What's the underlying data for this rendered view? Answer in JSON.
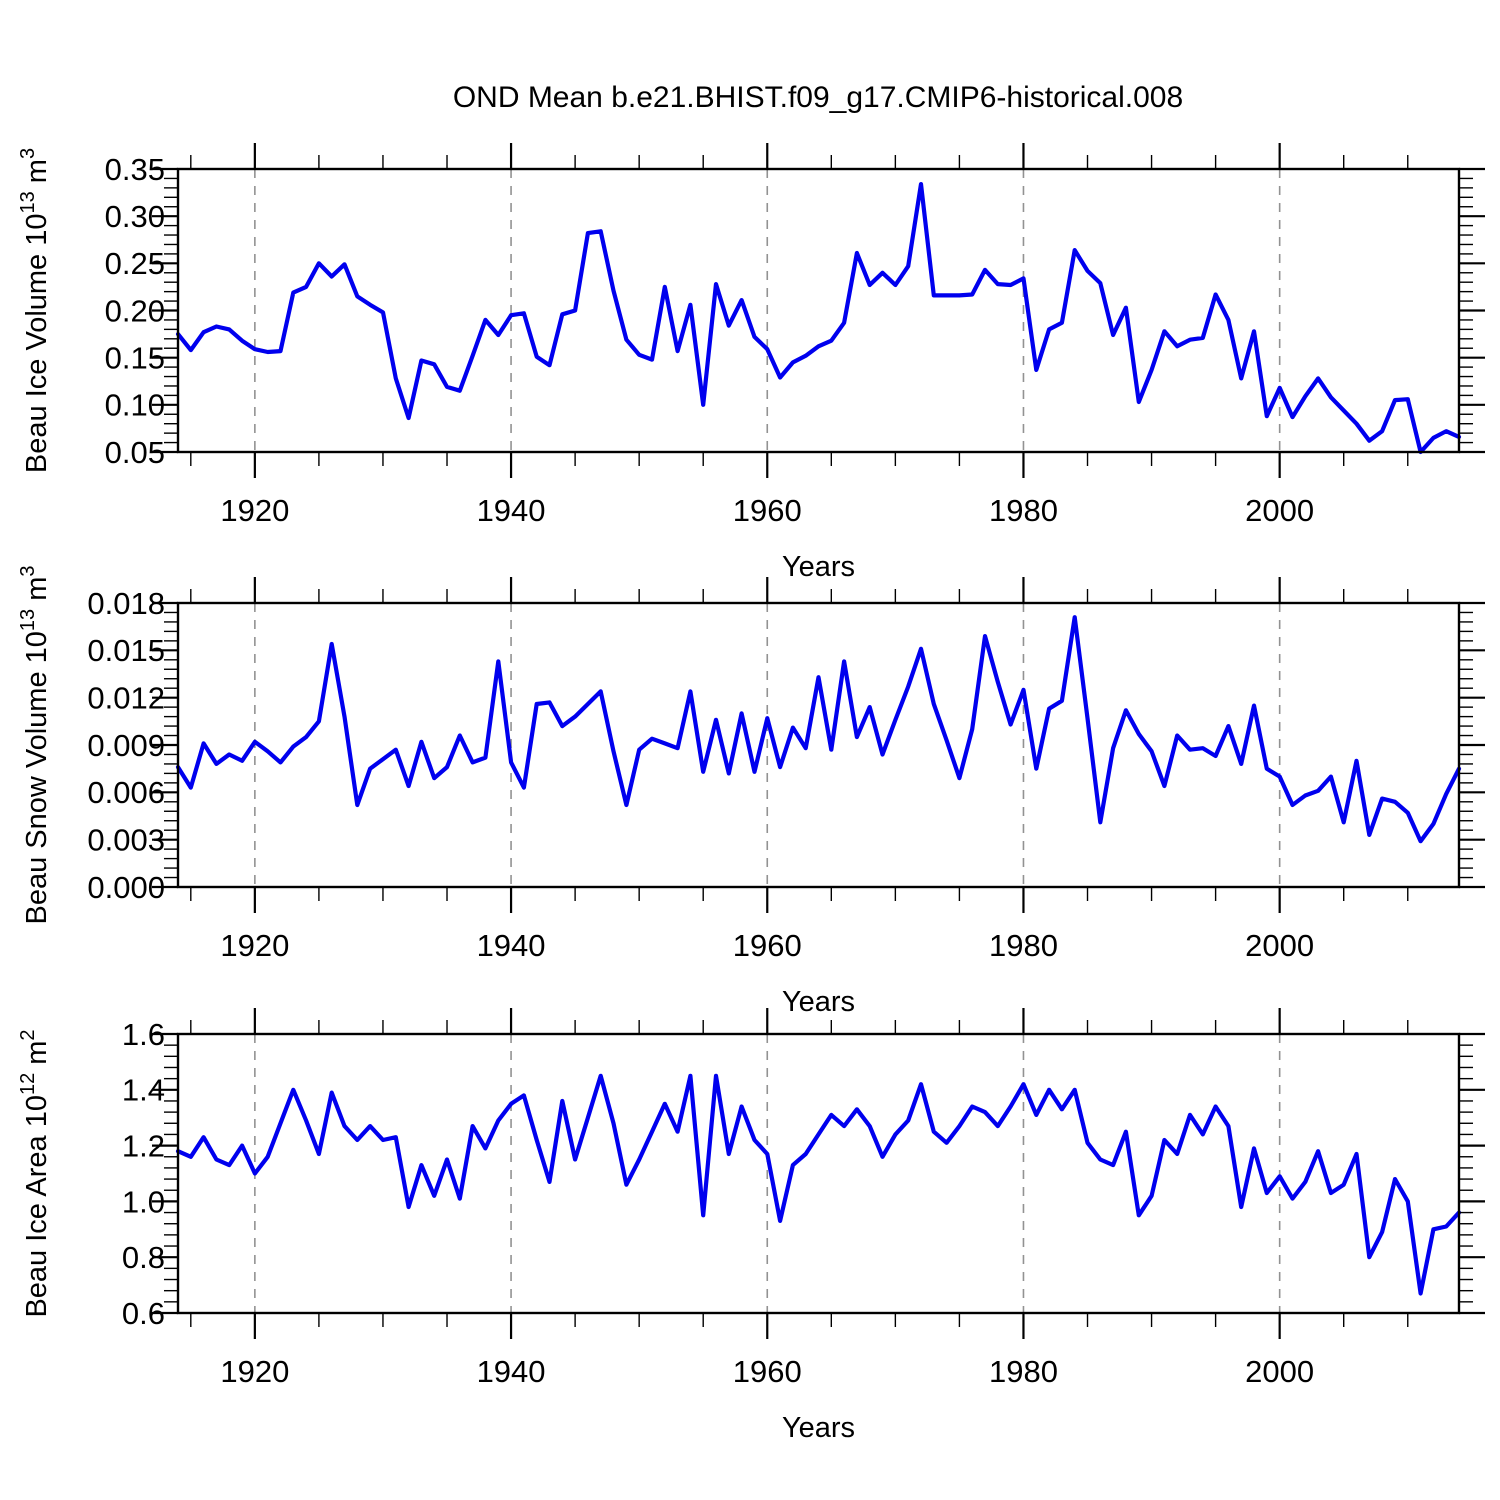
{
  "title": "OND Mean b.e21.BHIST.f09_g17.CMIP6-historical.008",
  "x_axis": {
    "label": "Years",
    "tick_labels": [
      "1920",
      "1940",
      "1960",
      "1980",
      "2000"
    ],
    "minor_step_years": 5,
    "range": [
      1914,
      2014
    ],
    "gridlines_at_major_ticks": true
  },
  "colors": {
    "line": "#0000EE",
    "grid": "#929292",
    "axis": "#000000",
    "background": "#ffffff"
  },
  "years": [
    1914,
    1915,
    1916,
    1917,
    1918,
    1919,
    1920,
    1921,
    1922,
    1923,
    1924,
    1925,
    1926,
    1927,
    1928,
    1929,
    1930,
    1931,
    1932,
    1933,
    1934,
    1935,
    1936,
    1937,
    1938,
    1939,
    1940,
    1941,
    1942,
    1943,
    1944,
    1945,
    1946,
    1947,
    1948,
    1949,
    1950,
    1951,
    1952,
    1953,
    1954,
    1955,
    1956,
    1957,
    1958,
    1959,
    1960,
    1961,
    1962,
    1963,
    1964,
    1965,
    1966,
    1967,
    1968,
    1969,
    1970,
    1971,
    1972,
    1973,
    1974,
    1975,
    1976,
    1977,
    1978,
    1979,
    1980,
    1981,
    1982,
    1983,
    1984,
    1985,
    1986,
    1987,
    1988,
    1989,
    1990,
    1991,
    1992,
    1993,
    1994,
    1995,
    1996,
    1997,
    1998,
    1999,
    2000,
    2001,
    2002,
    2003,
    2004,
    2005,
    2006,
    2007,
    2008,
    2009,
    2010,
    2011,
    2012,
    2013,
    2014
  ],
  "chart_data": [
    {
      "type": "line",
      "name": "beau-ice-volume",
      "ylabel_parts": [
        "Beau Ice Volume 10",
        {
          "sup": "13"
        },
        " m",
        {
          "sup": "3"
        }
      ],
      "xlabel": "Years",
      "ylim": [
        0.05,
        0.35
      ],
      "ytick_labels": [
        "0.05",
        "0.10",
        "0.15",
        "0.20",
        "0.25",
        "0.30",
        "0.35"
      ],
      "yminor_step": 0.01,
      "xlim": [
        1914,
        2014
      ],
      "legend": "none",
      "grid": "vertical-dashed",
      "values": [
        0.175,
        0.158,
        0.177,
        0.183,
        0.18,
        0.168,
        0.159,
        0.156,
        0.157,
        0.219,
        0.225,
        0.25,
        0.236,
        0.249,
        0.215,
        0.206,
        0.198,
        0.128,
        0.086,
        0.147,
        0.143,
        0.119,
        0.115,
        0.152,
        0.19,
        0.174,
        0.195,
        0.197,
        0.151,
        0.142,
        0.196,
        0.2,
        0.282,
        0.284,
        0.221,
        0.169,
        0.153,
        0.148,
        0.225,
        0.157,
        0.206,
        0.1,
        0.228,
        0.184,
        0.211,
        0.172,
        0.159,
        0.129,
        0.145,
        0.152,
        0.162,
        0.168,
        0.187,
        0.261,
        0.227,
        0.24,
        0.227,
        0.247,
        0.334,
        0.216,
        0.216,
        0.216,
        0.217,
        0.243,
        0.228,
        0.227,
        0.234,
        0.137,
        0.18,
        0.187,
        0.264,
        0.242,
        0.229,
        0.174,
        0.203,
        0.103,
        0.137,
        0.178,
        0.162,
        0.169,
        0.171,
        0.217,
        0.19,
        0.128,
        0.178,
        0.088,
        0.118,
        0.087,
        0.109,
        0.128,
        0.108,
        0.094,
        0.08,
        0.062,
        0.072,
        0.105,
        0.106,
        0.05,
        0.065,
        0.072,
        0.066
      ]
    },
    {
      "type": "line",
      "name": "beau-snow-volume",
      "ylabel_parts": [
        "Beau Snow Volume 10",
        {
          "sup": "13"
        },
        " m",
        {
          "sup": "3"
        }
      ],
      "xlabel": "Years",
      "ylim": [
        0.0,
        0.018
      ],
      "ytick_labels": [
        "0.000",
        "0.003",
        "0.006",
        "0.009",
        "0.012",
        "0.015",
        "0.018"
      ],
      "yminor_step": 0.0006,
      "xlim": [
        1914,
        2014
      ],
      "legend": "none",
      "grid": "vertical-dashed",
      "values": [
        0.0076,
        0.0063,
        0.0091,
        0.0078,
        0.0084,
        0.008,
        0.0092,
        0.0086,
        0.0079,
        0.0089,
        0.0095,
        0.0105,
        0.0154,
        0.0108,
        0.0052,
        0.0075,
        0.0081,
        0.0087,
        0.0064,
        0.0092,
        0.0069,
        0.0076,
        0.0096,
        0.0079,
        0.0082,
        0.0143,
        0.0079,
        0.0063,
        0.0116,
        0.0117,
        0.0102,
        0.0108,
        0.0116,
        0.0124,
        0.0086,
        0.0052,
        0.0087,
        0.0094,
        0.0091,
        0.0088,
        0.0124,
        0.0073,
        0.0106,
        0.0072,
        0.011,
        0.0073,
        0.0107,
        0.0076,
        0.0101,
        0.0088,
        0.0133,
        0.0087,
        0.0143,
        0.0095,
        0.0114,
        0.0084,
        0.0106,
        0.0127,
        0.0151,
        0.0116,
        0.0093,
        0.0069,
        0.01,
        0.0159,
        0.013,
        0.0103,
        0.0125,
        0.0075,
        0.0113,
        0.0118,
        0.0171,
        0.0107,
        0.0041,
        0.0088,
        0.0112,
        0.0097,
        0.0086,
        0.0064,
        0.0096,
        0.0087,
        0.0088,
        0.0083,
        0.0102,
        0.0078,
        0.0115,
        0.0075,
        0.007,
        0.0052,
        0.0058,
        0.0061,
        0.007,
        0.0041,
        0.008,
        0.0033,
        0.0056,
        0.0054,
        0.0047,
        0.0029,
        0.004,
        0.0059,
        0.0075
      ]
    },
    {
      "type": "line",
      "name": "beau-ice-area",
      "ylabel_parts": [
        "Beau Ice Area 10",
        {
          "sup": "12"
        },
        " m",
        {
          "sup": "2"
        }
      ],
      "xlabel": "Years",
      "ylim": [
        0.6,
        1.6
      ],
      "ytick_labels": [
        "0.6",
        "0.8",
        "1.0",
        "1.2",
        "1.4",
        "1.6"
      ],
      "yminor_step": 0.04,
      "xlim": [
        1914,
        2014
      ],
      "legend": "none",
      "grid": "vertical-dashed",
      "values": [
        1.18,
        1.16,
        1.23,
        1.15,
        1.13,
        1.2,
        1.1,
        1.16,
        1.28,
        1.4,
        1.29,
        1.17,
        1.39,
        1.27,
        1.22,
        1.27,
        1.22,
        1.23,
        0.98,
        1.13,
        1.02,
        1.15,
        1.01,
        1.27,
        1.19,
        1.29,
        1.35,
        1.38,
        1.22,
        1.07,
        1.36,
        1.15,
        1.3,
        1.45,
        1.28,
        1.06,
        1.15,
        1.25,
        1.35,
        1.25,
        1.45,
        0.95,
        1.45,
        1.17,
        1.34,
        1.22,
        1.17,
        0.93,
        1.13,
        1.17,
        1.24,
        1.31,
        1.27,
        1.33,
        1.27,
        1.16,
        1.24,
        1.29,
        1.42,
        1.25,
        1.21,
        1.27,
        1.34,
        1.32,
        1.27,
        1.34,
        1.42,
        1.31,
        1.4,
        1.33,
        1.4,
        1.21,
        1.15,
        1.13,
        1.25,
        0.95,
        1.02,
        1.22,
        1.17,
        1.31,
        1.24,
        1.34,
        1.27,
        0.98,
        1.19,
        1.03,
        1.09,
        1.01,
        1.07,
        1.18,
        1.03,
        1.06,
        1.17,
        0.8,
        0.89,
        1.08,
        1.0,
        0.67,
        0.9,
        0.91,
        0.96
      ]
    }
  ]
}
